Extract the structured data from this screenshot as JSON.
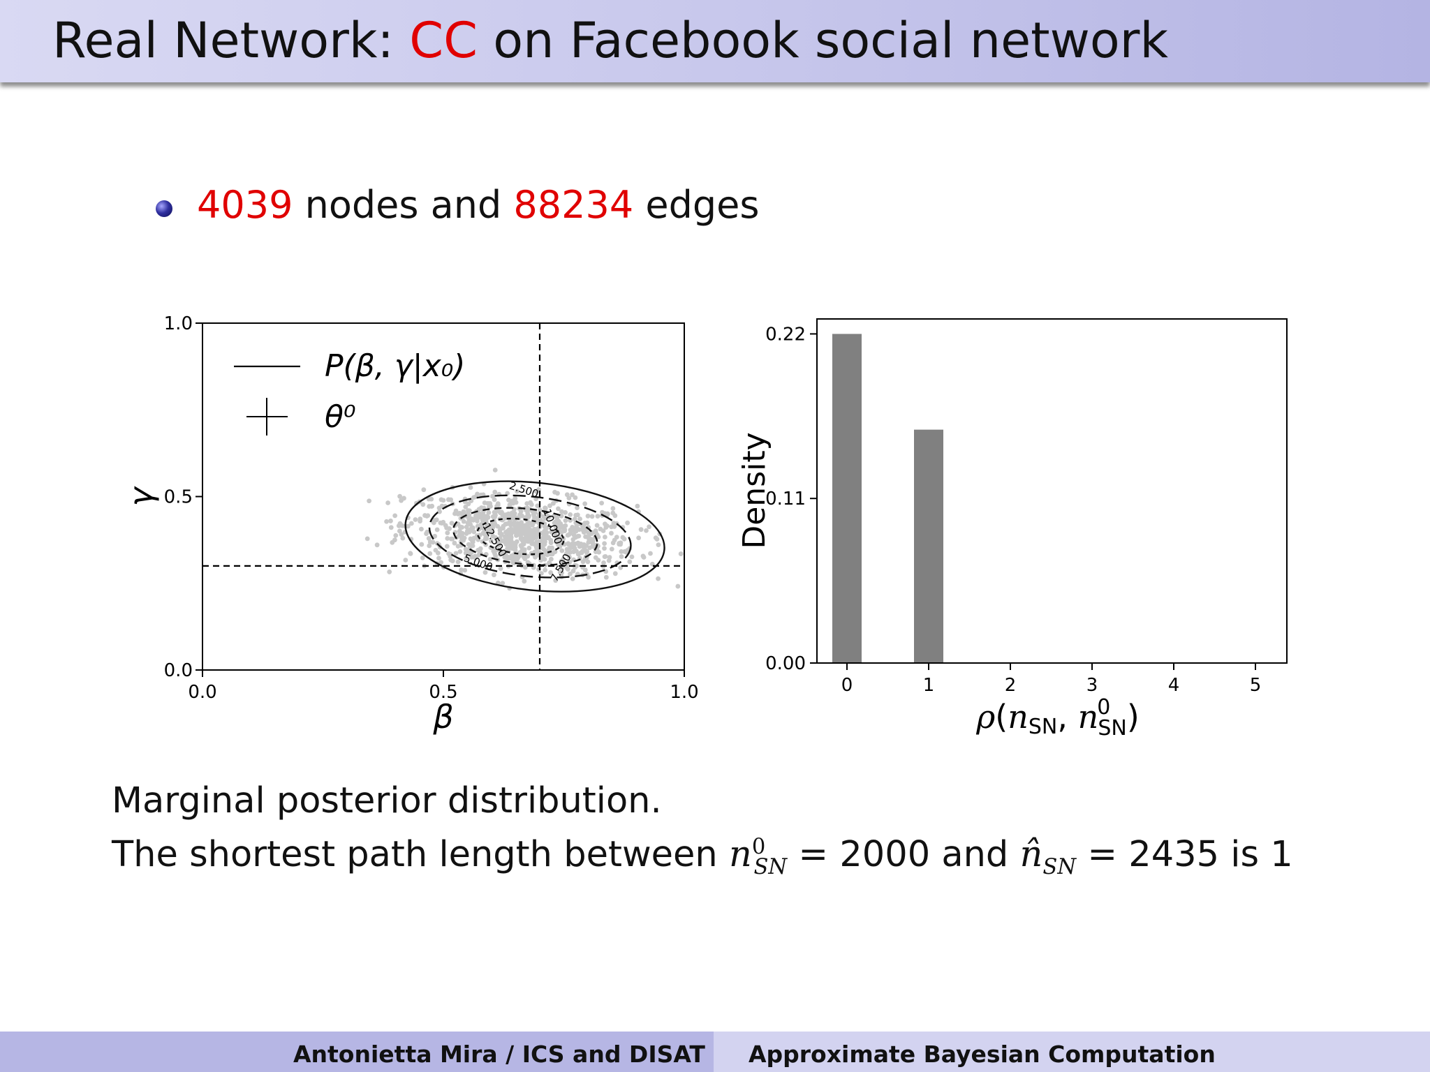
{
  "header": {
    "title_prefix": "Real Network: ",
    "title_highlight": "CC",
    "title_suffix": " on Facebook social network"
  },
  "bullet": {
    "nodes": "4039",
    "nodes_label": " nodes and ",
    "edges": "88234",
    "edges_label": " edges"
  },
  "caption": {
    "line1": "Marginal posterior distribution.",
    "line2_prefix": "The shortest path length between ",
    "n0_value": " = 2000 and ",
    "nhat_value": " = 2435 is 1"
  },
  "footer": {
    "left": "Antonietta Mira / ICS and DISAT",
    "right": "Approximate Bayesian Computation"
  },
  "colors": {
    "highlight": "#e00000",
    "bar": "#808080",
    "scatter": "#c8c8c8"
  },
  "chart_data": [
    {
      "type": "scatter",
      "xlabel": "β",
      "ylabel": "γ",
      "xlim": [
        0.0,
        1.0
      ],
      "ylim": [
        0.0,
        1.0
      ],
      "xticks": [
        "0.0",
        "0.5",
        "1.0"
      ],
      "yticks": [
        "0.0",
        "0.5",
        "1.0"
      ],
      "reference_lines": {
        "x": 0.7,
        "y": 0.3
      },
      "legend": {
        "position": "top-left",
        "entries": [
          "P(β, γ|x₀)",
          "θ⁰"
        ]
      },
      "contour_labels": [
        "2.500",
        "10.000",
        "12.500",
        "5.000",
        "7.500"
      ],
      "point_cloud": {
        "center": [
          0.66,
          0.39
        ],
        "spread": [
          0.12,
          0.055
        ],
        "x_range": [
          0.33,
          1.0
        ],
        "y_range": [
          0.22,
          0.58
        ]
      }
    },
    {
      "type": "bar",
      "xlabel": "ρ(n_SN, n⁰_SN)",
      "ylabel": "Density",
      "categories": [
        "0",
        "1",
        "2",
        "3",
        "4",
        "5"
      ],
      "values": [
        0.22,
        0.156,
        0,
        0,
        0,
        0
      ],
      "ylim": [
        0.0,
        0.23
      ],
      "yticks": [
        "0.00",
        "0.11",
        "0.22"
      ]
    }
  ]
}
